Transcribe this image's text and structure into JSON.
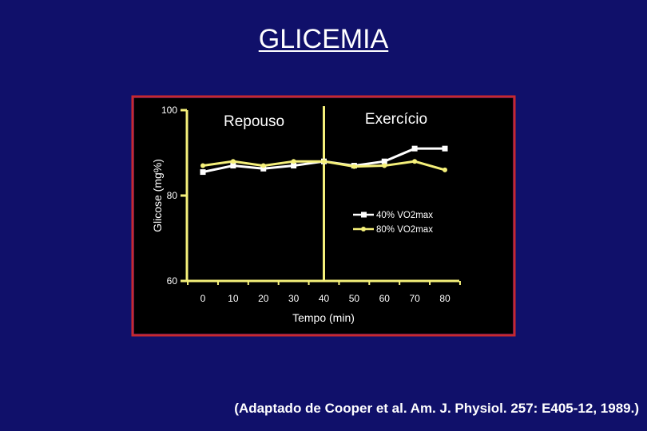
{
  "slide": {
    "title": "GLICEMIA",
    "citation": "(Adaptado de Cooper et al. Am.  J.  Physiol. 257: E405-12, 1989.)"
  },
  "colors": {
    "background": "#10106a",
    "plot_area": "#000000",
    "frame": "#c8282d",
    "axis": "#f5f07a",
    "series_40": "#ffffff",
    "series_80": "#f5f07a"
  },
  "chart_data": {
    "type": "line",
    "title": "",
    "xlabel": "Tempo (min)",
    "ylabel": "Glicose (mg%)",
    "xlim": [
      -5,
      85
    ],
    "ylim": [
      60,
      100
    ],
    "xticks": [
      0,
      10,
      20,
      30,
      40,
      50,
      60,
      70,
      80
    ],
    "yticks": [
      60,
      80,
      100
    ],
    "grid": false,
    "legend_position": "right",
    "annotations": {
      "phase_divider_x": 40,
      "left_phase_label": "Repouso",
      "right_phase_label": "Exercício"
    },
    "series": [
      {
        "name": "40% VO2max",
        "marker": "square",
        "color": "#ffffff",
        "x": [
          0,
          10,
          20,
          30,
          40,
          50,
          60,
          70,
          80
        ],
        "y": [
          85.5,
          87,
          86.3,
          87,
          88,
          87,
          88,
          91,
          91
        ]
      },
      {
        "name": "80% VO2max",
        "marker": "circle",
        "color": "#f5f07a",
        "x": [
          0,
          10,
          20,
          30,
          40,
          50,
          60,
          70,
          80
        ],
        "y": [
          87,
          88,
          87,
          88,
          88,
          86.8,
          87,
          88,
          86
        ]
      }
    ]
  }
}
